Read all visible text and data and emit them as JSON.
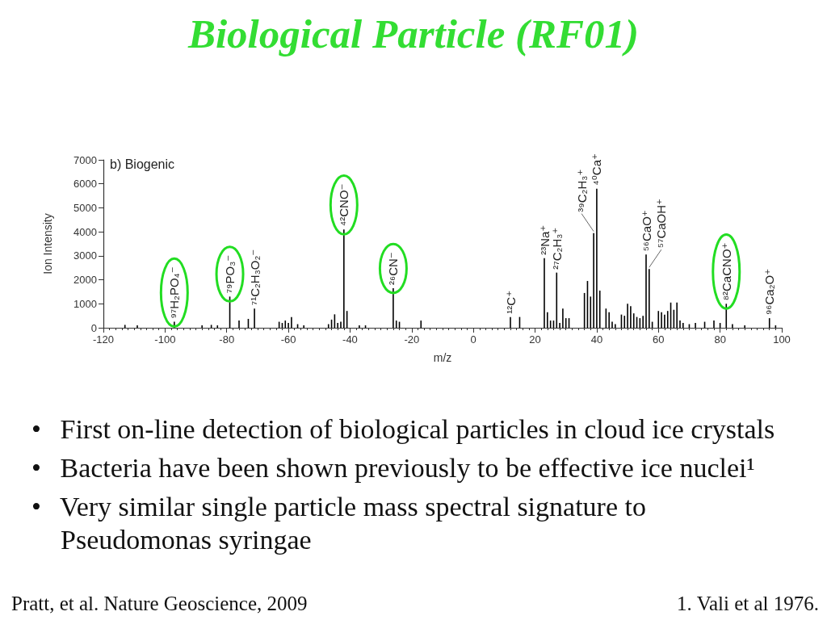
{
  "chart_data": {
    "type": "bar",
    "title": "Biological Particle (RF01)",
    "xlabel": "m/z",
    "ylabel": "Ion Intensity",
    "x": [
      -113,
      -109,
      -97,
      -88,
      -85,
      -83,
      -79,
      -76,
      -73,
      -71,
      -63,
      -62,
      -61,
      -60,
      -59,
      -57,
      -55,
      -47,
      -46,
      -45,
      -44,
      -43,
      -42,
      -41,
      -37,
      -35,
      -26,
      -25,
      -24,
      -17,
      12,
      15,
      23,
      24,
      25,
      26,
      27,
      28,
      29,
      30,
      31,
      36,
      37,
      38,
      39,
      40,
      41,
      43,
      44,
      45,
      46,
      48,
      49,
      50,
      51,
      52,
      53,
      54,
      55,
      56,
      57,
      58,
      60,
      61,
      62,
      63,
      64,
      65,
      66,
      67,
      68,
      70,
      72,
      75,
      78,
      80,
      82,
      84,
      88,
      96,
      98
    ],
    "values": [
      120,
      100,
      250,
      100,
      120,
      100,
      1300,
      300,
      370,
      800,
      250,
      200,
      300,
      200,
      450,
      150,
      100,
      150,
      340,
      560,
      200,
      250,
      4100,
      700,
      100,
      100,
      1650,
      300,
      250,
      300,
      450,
      450,
      2900,
      650,
      300,
      300,
      2300,
      200,
      800,
      400,
      400,
      1450,
      1950,
      1300,
      3950,
      5800,
      1550,
      800,
      650,
      250,
      150,
      550,
      500,
      1000,
      900,
      600,
      450,
      400,
      500,
      3050,
      2450,
      250,
      700,
      650,
      550,
      700,
      1050,
      750,
      1050,
      300,
      200,
      150,
      200,
      250,
      300,
      200,
      1000,
      150,
      100,
      400,
      100
    ],
    "color": "#000000",
    "xlim": [
      -120,
      100
    ],
    "xticks": [
      -120,
      -100,
      -80,
      -60,
      -40,
      -20,
      0,
      20,
      40,
      60,
      80,
      100
    ],
    "ylim": [
      0,
      7000
    ],
    "yticks": [
      0,
      1000,
      2000,
      3000,
      4000,
      5000,
      6000,
      7000
    ],
    "annotations": [
      {
        "text": "⁹⁷H₂PO₄⁻",
        "x": -97,
        "y": 250
      },
      {
        "text": "⁷⁹PO₃⁻",
        "x": -79,
        "y": 1300
      },
      {
        "text": "⁷¹C₂H₃O₂⁻",
        "x": -71,
        "y": 800
      },
      {
        "text": "⁴²CNO⁻",
        "x": -42,
        "y": 4100
      },
      {
        "text": "²⁶CN⁻",
        "x": -26,
        "y": 1650
      },
      {
        "text": "¹²C⁺",
        "x": 12,
        "y": 450
      },
      {
        "text": "²³Na⁺",
        "x": 23,
        "y": 2900
      },
      {
        "text": "²⁷C₂H₃⁺",
        "x": 27,
        "y": 2300
      },
      {
        "text": "³⁹C₂H₃⁺",
        "x": 39,
        "y": 3950
      },
      {
        "text": "⁴⁰Ca⁺",
        "x": 40,
        "y": 5800
      },
      {
        "text": "⁵⁶CaO⁺",
        "x": 56,
        "y": 3050
      },
      {
        "text": "⁵⁷CaOH⁺",
        "x": 57,
        "y": 2450
      },
      {
        "text": "⁸²CaCNO⁺",
        "x": 82,
        "y": 1000
      },
      {
        "text": "⁹⁶Ca₂O⁺",
        "x": 96,
        "y": 400
      },
      "b) Biogenic",
      "• First on-line detection of biological particles in cloud ice crystals",
      "• Bacteria have been shown previously to be effective ice nuclei¹",
      "• Very similar single particle mass spectral signature to Pseudomonas syringae",
      "Pratt, et al. Nature Geoscience, 2009",
      "1. Vali et al 1976."
    ]
  }
}
